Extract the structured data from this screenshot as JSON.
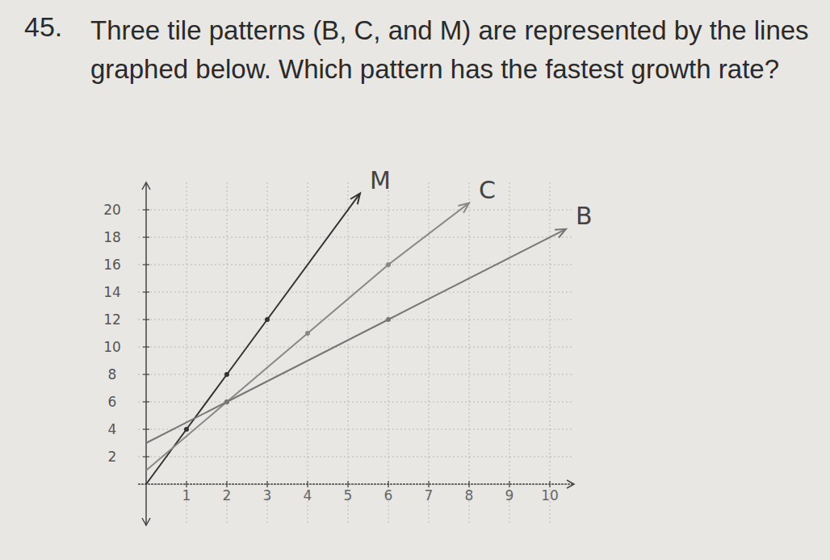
{
  "chart_data": {
    "type": "line",
    "question_number": "45.",
    "title": "Three tile patterns (B, C, and M) are represented by the lines graphed below. Which pattern has the fastest growth rate?",
    "series": [
      {
        "name": "M",
        "color": "#333333",
        "marker": "dot",
        "x": [
          0,
          1,
          2,
          3,
          5.3
        ],
        "values": [
          0,
          4,
          8,
          12,
          21.2
        ]
      },
      {
        "name": "C",
        "color": "#888888",
        "marker": "dot",
        "x": [
          0,
          2,
          4,
          6,
          8
        ],
        "values": [
          1,
          6,
          11,
          16,
          20.5
        ]
      },
      {
        "name": "B",
        "color": "#777777",
        "marker": "dot",
        "x": [
          0,
          2,
          6,
          10.4
        ],
        "values": [
          3,
          6,
          12,
          18.6
        ]
      }
    ],
    "xlim": [
      -0.2,
      10.6
    ],
    "xticks": [
      1,
      2,
      3,
      4,
      5,
      6,
      7,
      8,
      9,
      10
    ],
    "ylim": [
      -3,
      22
    ],
    "yticks": [
      2,
      4,
      6,
      8,
      10,
      12,
      14,
      16,
      18,
      20
    ],
    "grid": true
  }
}
